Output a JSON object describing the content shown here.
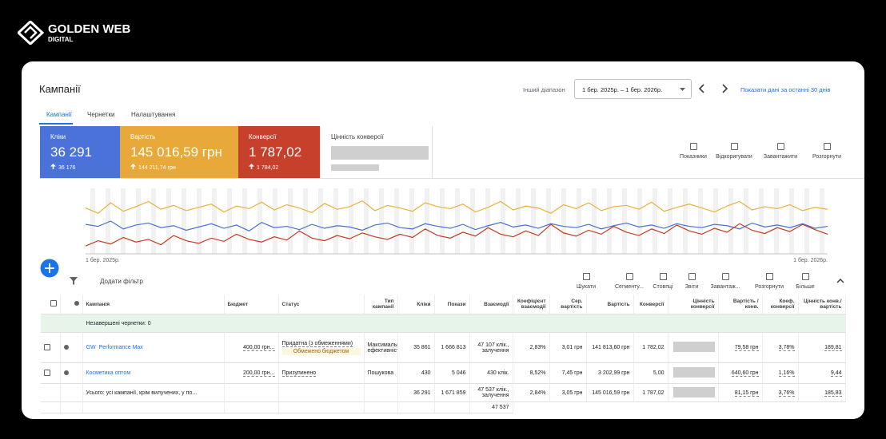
{
  "brand": {
    "name": "GOLDEN WEB",
    "sub": "DIGITAL"
  },
  "header": {
    "title": "Кампанії",
    "range_label": "Інший діапазон",
    "range": "1 бер. 2025р. – 1 бер. 2026р.",
    "show_last": "Показати дані за останні 30 днів"
  },
  "tabs": [
    "Кампанії",
    "Чернетки",
    "Налаштування"
  ],
  "scorecards": [
    {
      "label": "Кліки",
      "value": "36 291",
      "prev": "36 176",
      "color": "#4a72d8"
    },
    {
      "label": "Вартість",
      "value": "145 016,59 грн",
      "prev": "144 211,74 грн",
      "color": "#e8a93a"
    },
    {
      "label": "Конверсії",
      "value": "1 787,02",
      "prev": "1 784,02",
      "color": "#c6402b"
    },
    {
      "label": "Цінність конверсії"
    }
  ],
  "card_tools": [
    "Показники",
    "Відкоригувати",
    "Завантажити",
    "Розгорнути"
  ],
  "chart_data": {
    "type": "line",
    "ylim": [
      0,
      100
    ],
    "categories": [
      "1 бер. 2025р.",
      null,
      null,
      null,
      null,
      null,
      null,
      null,
      null,
      null,
      null,
      null,
      null,
      null,
      null,
      null,
      null,
      null,
      null,
      null,
      null,
      null,
      null,
      null,
      null,
      null,
      null,
      null,
      null,
      null,
      null,
      null,
      null,
      null,
      null,
      null,
      null,
      null,
      null,
      null,
      null,
      null,
      null,
      null,
      null,
      null,
      null,
      null,
      null,
      null,
      null,
      null,
      null,
      null,
      null,
      null,
      null,
      null,
      null,
      "1 бер. 2026р."
    ],
    "series": [
      {
        "color": "#e8b13a",
        "values": [
          70,
          62,
          78,
          65,
          72,
          80,
          68,
          74,
          66,
          71,
          76,
          64,
          73,
          69,
          79,
          67,
          75,
          70,
          63,
          77,
          68,
          72,
          81,
          66,
          74,
          70,
          65,
          78,
          72,
          69,
          76,
          64,
          71,
          80,
          67,
          73,
          70,
          62,
          75,
          69,
          78,
          66,
          72,
          74,
          68,
          79,
          65,
          71,
          76,
          70,
          64,
          73,
          80,
          67,
          72,
          69,
          75,
          66,
          71,
          68
        ]
      },
      {
        "color": "#4a6fd4",
        "values": [
          45,
          42,
          50,
          38,
          44,
          47,
          40,
          43,
          36,
          41,
          46,
          39,
          44,
          35,
          48,
          40,
          42,
          37,
          45,
          39,
          43,
          41,
          36,
          44,
          47,
          40,
          38,
          46,
          42,
          39,
          45,
          37,
          43,
          48,
          41,
          44,
          39,
          46,
          42,
          40,
          45,
          38,
          43,
          47,
          41,
          44,
          39,
          46,
          42,
          40,
          45,
          43,
          38,
          47,
          41,
          44,
          40,
          46,
          39,
          42
        ]
      },
      {
        "color": "#c33b22",
        "values": [
          12,
          20,
          15,
          25,
          18,
          22,
          14,
          28,
          20,
          16,
          24,
          19,
          30,
          22,
          18,
          26,
          21,
          35,
          24,
          20,
          28,
          23,
          32,
          26,
          22,
          30,
          25,
          38,
          28,
          24,
          33,
          27,
          40,
          30,
          26,
          35,
          28,
          45,
          32,
          27,
          36,
          30,
          42,
          33,
          28,
          38,
          31,
          44,
          35,
          30,
          39,
          33,
          46,
          36,
          31,
          40,
          34,
          45,
          37,
          30
        ]
      }
    ]
  },
  "toolbar": {
    "filter": "Додати фільтр",
    "tools": [
      "Шукати",
      "Сегменту...",
      "Стовпці",
      "Звіти",
      "Завантаж...",
      "Розгорнути",
      "Більше"
    ]
  },
  "table": {
    "columns": [
      "Кампанія",
      "Бюджет",
      "Статус",
      "Тип кампанії",
      "Кліки",
      "Покази",
      "Взаємодії",
      "Коефіцієнт взаємодії",
      "Сер. вартість",
      "Вартість",
      "Конверсії",
      "Цінність конверсії",
      "Вартість / конв.",
      "Коеф. конверсії",
      "Цінність конв./вартість"
    ],
    "group": "Незавершені чернетки: 0",
    "rows": [
      {
        "prefix": "GW",
        "name": "Performance Max",
        "budget": "400,00 грн...",
        "status": "Придатна (з обмеженнями)",
        "badge": "Обмежено бюджетом",
        "type": "Максимальна ефективність",
        "clicks": "35 861",
        "impressions": "1 666 813",
        "interactions": "47 107 клік., залучення",
        "interaction_rate": "2,83%",
        "avg_cost": "3,01 грн",
        "cost": "141 813,60 грн",
        "conversions": "1 782,02",
        "cost_per_conv": "79,58 грн",
        "conv_rate": "3,78%",
        "value_per_cost": "189,81"
      },
      {
        "name": "Косметика оптом",
        "budget": "200,00 грн...",
        "status": "Призупинено",
        "type": "Пошукова",
        "clicks": "430",
        "impressions": "5 046",
        "interactions": "430 клік.",
        "interaction_rate": "8,52%",
        "avg_cost": "7,45 грн",
        "cost": "3 202,99 грн",
        "conversions": "5,00",
        "cost_per_conv": "640,60 грн",
        "conv_rate": "1,16%",
        "value_per_cost": "9,44"
      }
    ],
    "total": {
      "name": "Усього: усі кампанії, крім вилучених, у по...",
      "clicks": "36 291",
      "impressions": "1 671 859",
      "interactions": "47 537 клік., залучення",
      "interaction_rate": "2,84%",
      "avg_cost": "3,05 грн",
      "cost": "145 016,59 грн",
      "conversions": "1 787,02",
      "cost_per_conv": "81,15 грн",
      "conv_rate": "3,76%",
      "value_per_cost": "185,83"
    },
    "next_cell": "47 537"
  }
}
